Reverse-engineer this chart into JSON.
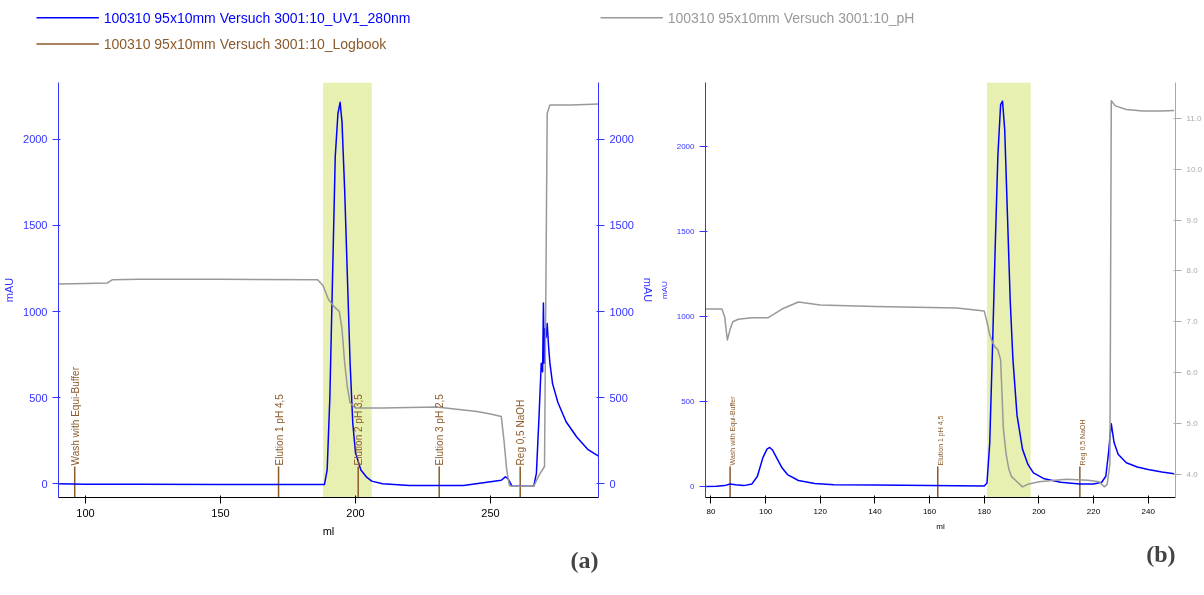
{
  "chart_data": [
    {
      "type": "line",
      "xlabel": "ml",
      "ylabel": "mAU",
      "y2label": "mAU",
      "legend": "top",
      "grid": false,
      "xlim": [
        90,
        290
      ],
      "xticks": [
        100,
        150,
        200,
        250
      ],
      "ylim": [
        -80,
        2330
      ],
      "yticks": [
        0,
        500,
        1000,
        1500,
        2000
      ],
      "y2lim": [
        -80,
        2330
      ],
      "y2ticks": [
        0,
        500,
        1000,
        1500,
        2000
      ],
      "series": [
        {
          "name": "100310 95x10mm Versuch 3001:10_UV1_280nm",
          "color": "#0000ff",
          "x": [
            90,
            100,
            120,
            150,
            180,
            187,
            188.5,
            189.5,
            190.5,
            191.5,
            192.5,
            193.5,
            194.3,
            195,
            196,
            197,
            198,
            199,
            200,
            202,
            204,
            206,
            210,
            220,
            240,
            254,
            255.5,
            256.5,
            258,
            266,
            267,
            268,
            268.8,
            269.3,
            269.6,
            269.9,
            270.2,
            270.6,
            271,
            271.5,
            272,
            273,
            275,
            278,
            282,
            286,
            290
          ],
          "values": [
            0,
            -3,
            -3,
            -5,
            -5,
            -5,
            -5,
            80,
            500,
            1200,
            1900,
            2150,
            2215,
            2100,
            1700,
            1200,
            700,
            350,
            180,
            80,
            40,
            15,
            0,
            -10,
            -10,
            20,
            40,
            30,
            -15,
            -15,
            60,
            400,
            700,
            650,
            1050,
            700,
            900,
            850,
            930,
            800,
            700,
            580,
            470,
            360,
            270,
            200,
            160
          ]
        },
        {
          "name": "100310 95x10mm Versuch 3001:10_pH",
          "color": "#999999",
          "x": [
            90,
            100,
            108,
            110,
            120,
            150,
            186,
            188,
            190,
            192,
            194,
            195,
            196,
            197,
            198,
            200,
            210,
            230,
            245,
            250,
            254,
            255,
            256,
            257,
            258,
            266,
            268,
            270,
            271,
            272,
            280,
            290
          ],
          "values": [
            1160,
            1163,
            1165,
            1185,
            1188,
            1187,
            1185,
            1150,
            1070,
            1030,
            1000,
            900,
            700,
            560,
            470,
            440,
            440,
            445,
            420,
            405,
            390,
            250,
            80,
            -10,
            -15,
            -15,
            50,
            100,
            2150,
            2200,
            2200,
            2205
          ]
        }
      ],
      "bands": [
        {
          "axis": "x",
          "from": 188,
          "to": 206,
          "color": "#dde98f"
        }
      ],
      "ref_lines": [
        {
          "axis": "x",
          "value": 96,
          "label": "Wash with Equi-Buffer",
          "color": "#8b5a2b"
        },
        {
          "axis": "x",
          "value": 171.5,
          "label": "Elution 1 pH 4,5",
          "color": "#8b5a2b"
        },
        {
          "axis": "x",
          "value": 201,
          "label": "Elution 2 pH 3,5",
          "color": "#8b5a2b"
        },
        {
          "axis": "x",
          "value": 231,
          "label": "Elution 3 pH 2,5",
          "color": "#8b5a2b"
        },
        {
          "axis": "x",
          "value": 261,
          "label": "Reg 0,5 NaOH",
          "color": "#8b5a2b"
        }
      ],
      "annotations": [
        "100310 95x10mm Versuch 3001:10_Logbook",
        "(a)"
      ]
    },
    {
      "type": "line",
      "xlabel": "ml",
      "ylabel": "mAU",
      "grid": false,
      "xlim": [
        78,
        250
      ],
      "xticks": [
        80,
        100,
        120,
        140,
        160,
        180,
        200,
        220,
        240
      ],
      "ylim": [
        -65,
        2380
      ],
      "yticks": [
        0,
        500,
        1000,
        1500,
        2000
      ],
      "y2lim": [
        3.54,
        11.71
      ],
      "y2ticks": [
        {
          "value": 4,
          "label": "4.0"
        },
        {
          "value": 5,
          "label": "5.0"
        },
        {
          "value": 6,
          "label": "6.0"
        },
        {
          "value": 7,
          "label": "7.0"
        },
        {
          "value": 8,
          "label": "8.0"
        },
        {
          "value": 9,
          "label": "9.0"
        },
        {
          "value": 10,
          "label": "10.0"
        },
        {
          "value": 11,
          "label": "11.0"
        }
      ],
      "series": [
        {
          "color": "#0000ff",
          "x": [
            78,
            82,
            85,
            87,
            89,
            92,
            95,
            97,
            99,
            100.5,
            101.5,
            102.5,
            104,
            106,
            108,
            112,
            118,
            125,
            140,
            160,
            180,
            181,
            182,
            183,
            184,
            185,
            186,
            186.7,
            187.5,
            188.5,
            189.5,
            190.5,
            192,
            194,
            196,
            198,
            202,
            208,
            215,
            220,
            223,
            224.5,
            225.5,
            226.5,
            227.5,
            229,
            232,
            236,
            240,
            245,
            249.5
          ],
          "values": [
            0,
            2,
            5,
            15,
            10,
            5,
            15,
            60,
            170,
            220,
            230,
            215,
            170,
            110,
            70,
            35,
            18,
            10,
            8,
            5,
            3,
            20,
            250,
            800,
            1400,
            1950,
            2250,
            2270,
            2100,
            1600,
            1100,
            750,
            420,
            220,
            130,
            80,
            45,
            25,
            15,
            15,
            25,
            60,
            200,
            370,
            260,
            190,
            140,
            115,
            100,
            85,
            75
          ]
        },
        {
          "color": "#999999",
          "axis": "y2",
          "x": [
            78,
            84,
            85,
            86,
            87,
            88,
            90,
            95,
            101,
            106,
            112,
            120,
            140,
            160,
            170,
            180,
            181,
            182,
            183,
            184,
            185,
            186,
            186.5,
            187,
            188,
            189,
            190,
            192,
            194,
            196,
            200,
            210,
            218,
            222,
            224,
            225,
            226,
            226.5,
            228,
            232,
            238,
            245,
            249.5
          ],
          "values": [
            7.25,
            7.25,
            7.1,
            6.64,
            6.85,
            7.0,
            7.05,
            7.08,
            7.08,
            7.25,
            7.39,
            7.33,
            7.3,
            7.28,
            7.27,
            7.21,
            7.0,
            6.75,
            6.6,
            6.5,
            6.45,
            6.25,
            5.6,
            4.9,
            4.4,
            4.1,
            3.95,
            3.85,
            3.75,
            3.8,
            3.85,
            3.9,
            3.88,
            3.85,
            3.75,
            3.8,
            4.2,
            11.35,
            11.25,
            11.18,
            11.15,
            11.15,
            11.16
          ]
        }
      ],
      "bands": [
        {
          "axis": "x",
          "from": 181,
          "to": 197,
          "color": "#dde98f"
        }
      ],
      "ref_lines": [
        {
          "axis": "x",
          "value": 87,
          "label": "Wash with Equi-Buffer",
          "color": "#8b5a2b"
        },
        {
          "axis": "x",
          "value": 163,
          "label": "Elution 1 pH 4,5",
          "color": "#8b5a2b"
        },
        {
          "axis": "x",
          "value": 215,
          "label": "Reg 0,5 NaOH",
          "color": "#8b5a2b"
        }
      ],
      "annotations": [
        "(b)"
      ]
    }
  ]
}
